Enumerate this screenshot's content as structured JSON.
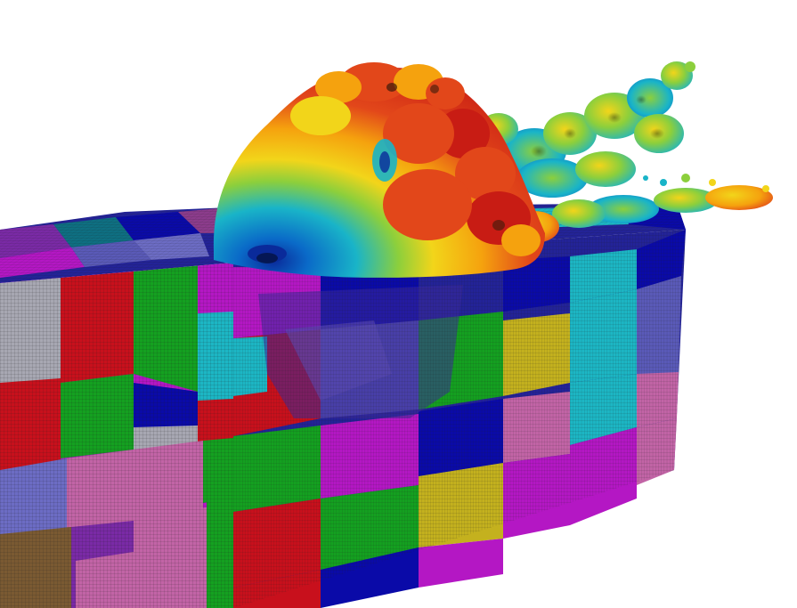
{
  "scene": {
    "background": "#ffffff",
    "mesh_line_color": "#1a1a1a",
    "partition_colors": {
      "red": "#c8101c",
      "green": "#14a020",
      "blue": "#0a0aa8",
      "navy": "#232398",
      "magenta": "#b417c4",
      "purple": "#7a2aa6",
      "pink": "#c264a6",
      "cyan": "#1cb6c4",
      "teal": "#0e6f82",
      "yellow": "#c4b11e",
      "olive": "#8a7a24",
      "brown": "#7a5a32",
      "gray": "#a7a7b2",
      "slate": "#5a5ab8",
      "lavender": "#6c6cc4",
      "mauve": "#8c3c8c"
    },
    "field_colormap": [
      "#0a2a9a",
      "#0a6ac8",
      "#19b4c8",
      "#8ccf3c",
      "#f2d51a",
      "#f5a20e",
      "#e2471a",
      "#c81c14"
    ]
  }
}
